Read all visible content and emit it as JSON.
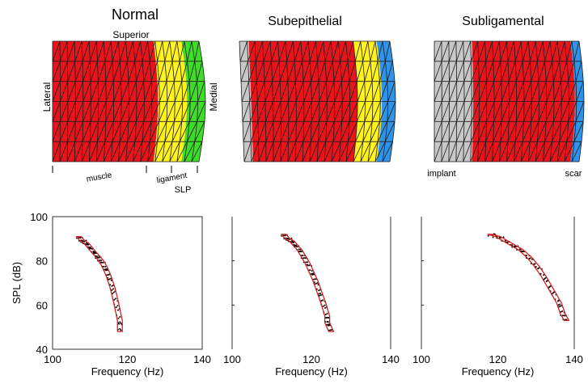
{
  "models": [
    {
      "title": "Normal",
      "labels": {
        "superior": "Superior",
        "lateral": "Lateral",
        "medial": "Medial"
      },
      "layers": [
        {
          "name": "muscle",
          "color": "red"
        },
        {
          "name": "ligament",
          "color": "yellow"
        },
        {
          "name": "SLP",
          "color": "green"
        }
      ],
      "bottom_labels": [
        "muscle",
        "ligament",
        "SLP"
      ]
    },
    {
      "title": "Subepithelial",
      "layers": [
        {
          "name": "implant",
          "color": "gray"
        },
        {
          "name": "muscle",
          "color": "red"
        },
        {
          "name": "ligament",
          "color": "yellow"
        },
        {
          "name": "scar",
          "color": "blue"
        }
      ]
    },
    {
      "title": "Subligamental",
      "layers": [
        {
          "name": "implant",
          "color": "gray"
        },
        {
          "name": "muscle",
          "color": "red"
        },
        {
          "name": "scar",
          "color": "blue"
        }
      ],
      "bottom_labels": [
        "implant",
        "scar"
      ]
    }
  ],
  "colors": {
    "red": "#e8141c",
    "yellow": "#fff21f",
    "green": "#3fdc2a",
    "blue": "#2f93e8",
    "gray": "#c8c8c8",
    "mesh": "#1a1a1a",
    "contour": "#d42020"
  },
  "chart_data": [
    {
      "type": "scatter",
      "xlabel": "Frequency (Hz)",
      "ylabel": "SPL (dB)",
      "xlim": [
        100,
        140
      ],
      "ylim": [
        40,
        100
      ],
      "xticks": [
        "100",
        "120",
        "140"
      ],
      "yticks": [
        "40",
        "60",
        "80",
        "100"
      ],
      "series": [
        {
          "points": [
            [
              107,
              91
            ],
            [
              108,
              89
            ],
            [
              109,
              88
            ],
            [
              110,
              86
            ],
            [
              111,
              84
            ],
            [
              112,
              82
            ],
            [
              113,
              80
            ],
            [
              114,
              77
            ],
            [
              115,
              73
            ],
            [
              116,
              68
            ],
            [
              117,
              61
            ],
            [
              118,
              53
            ],
            [
              118,
              48
            ]
          ]
        }
      ]
    },
    {
      "type": "scatter",
      "xlabel": "Frequency (Hz)",
      "xlim": [
        100,
        140
      ],
      "ylim": [
        40,
        100
      ],
      "xticks": [
        "100",
        "120",
        "140"
      ],
      "series": [
        {
          "points": [
            [
              113,
              92
            ],
            [
              114,
              90
            ],
            [
              115,
              89
            ],
            [
              116,
              87
            ],
            [
              117,
              85
            ],
            [
              118,
              82
            ],
            [
              119,
              79
            ],
            [
              120,
              75
            ],
            [
              121,
              71
            ],
            [
              122,
              66
            ],
            [
              123,
              61
            ],
            [
              124,
              55
            ],
            [
              124,
              52
            ],
            [
              125,
              48
            ]
          ]
        }
      ]
    },
    {
      "type": "scatter",
      "xlabel": "Frequency (Hz)",
      "xlim": [
        100,
        140
      ],
      "ylim": [
        40,
        100
      ],
      "xticks": [
        "100",
        "120",
        "140"
      ],
      "series": [
        {
          "points": [
            [
              118,
              92
            ],
            [
              120,
              91
            ],
            [
              122,
              89
            ],
            [
              124,
              87
            ],
            [
              126,
              85
            ],
            [
              128,
              82
            ],
            [
              130,
              78
            ],
            [
              132,
              73
            ],
            [
              134,
              67
            ],
            [
              136,
              61
            ],
            [
              137,
              56
            ],
            [
              138,
              53
            ]
          ]
        }
      ]
    }
  ]
}
